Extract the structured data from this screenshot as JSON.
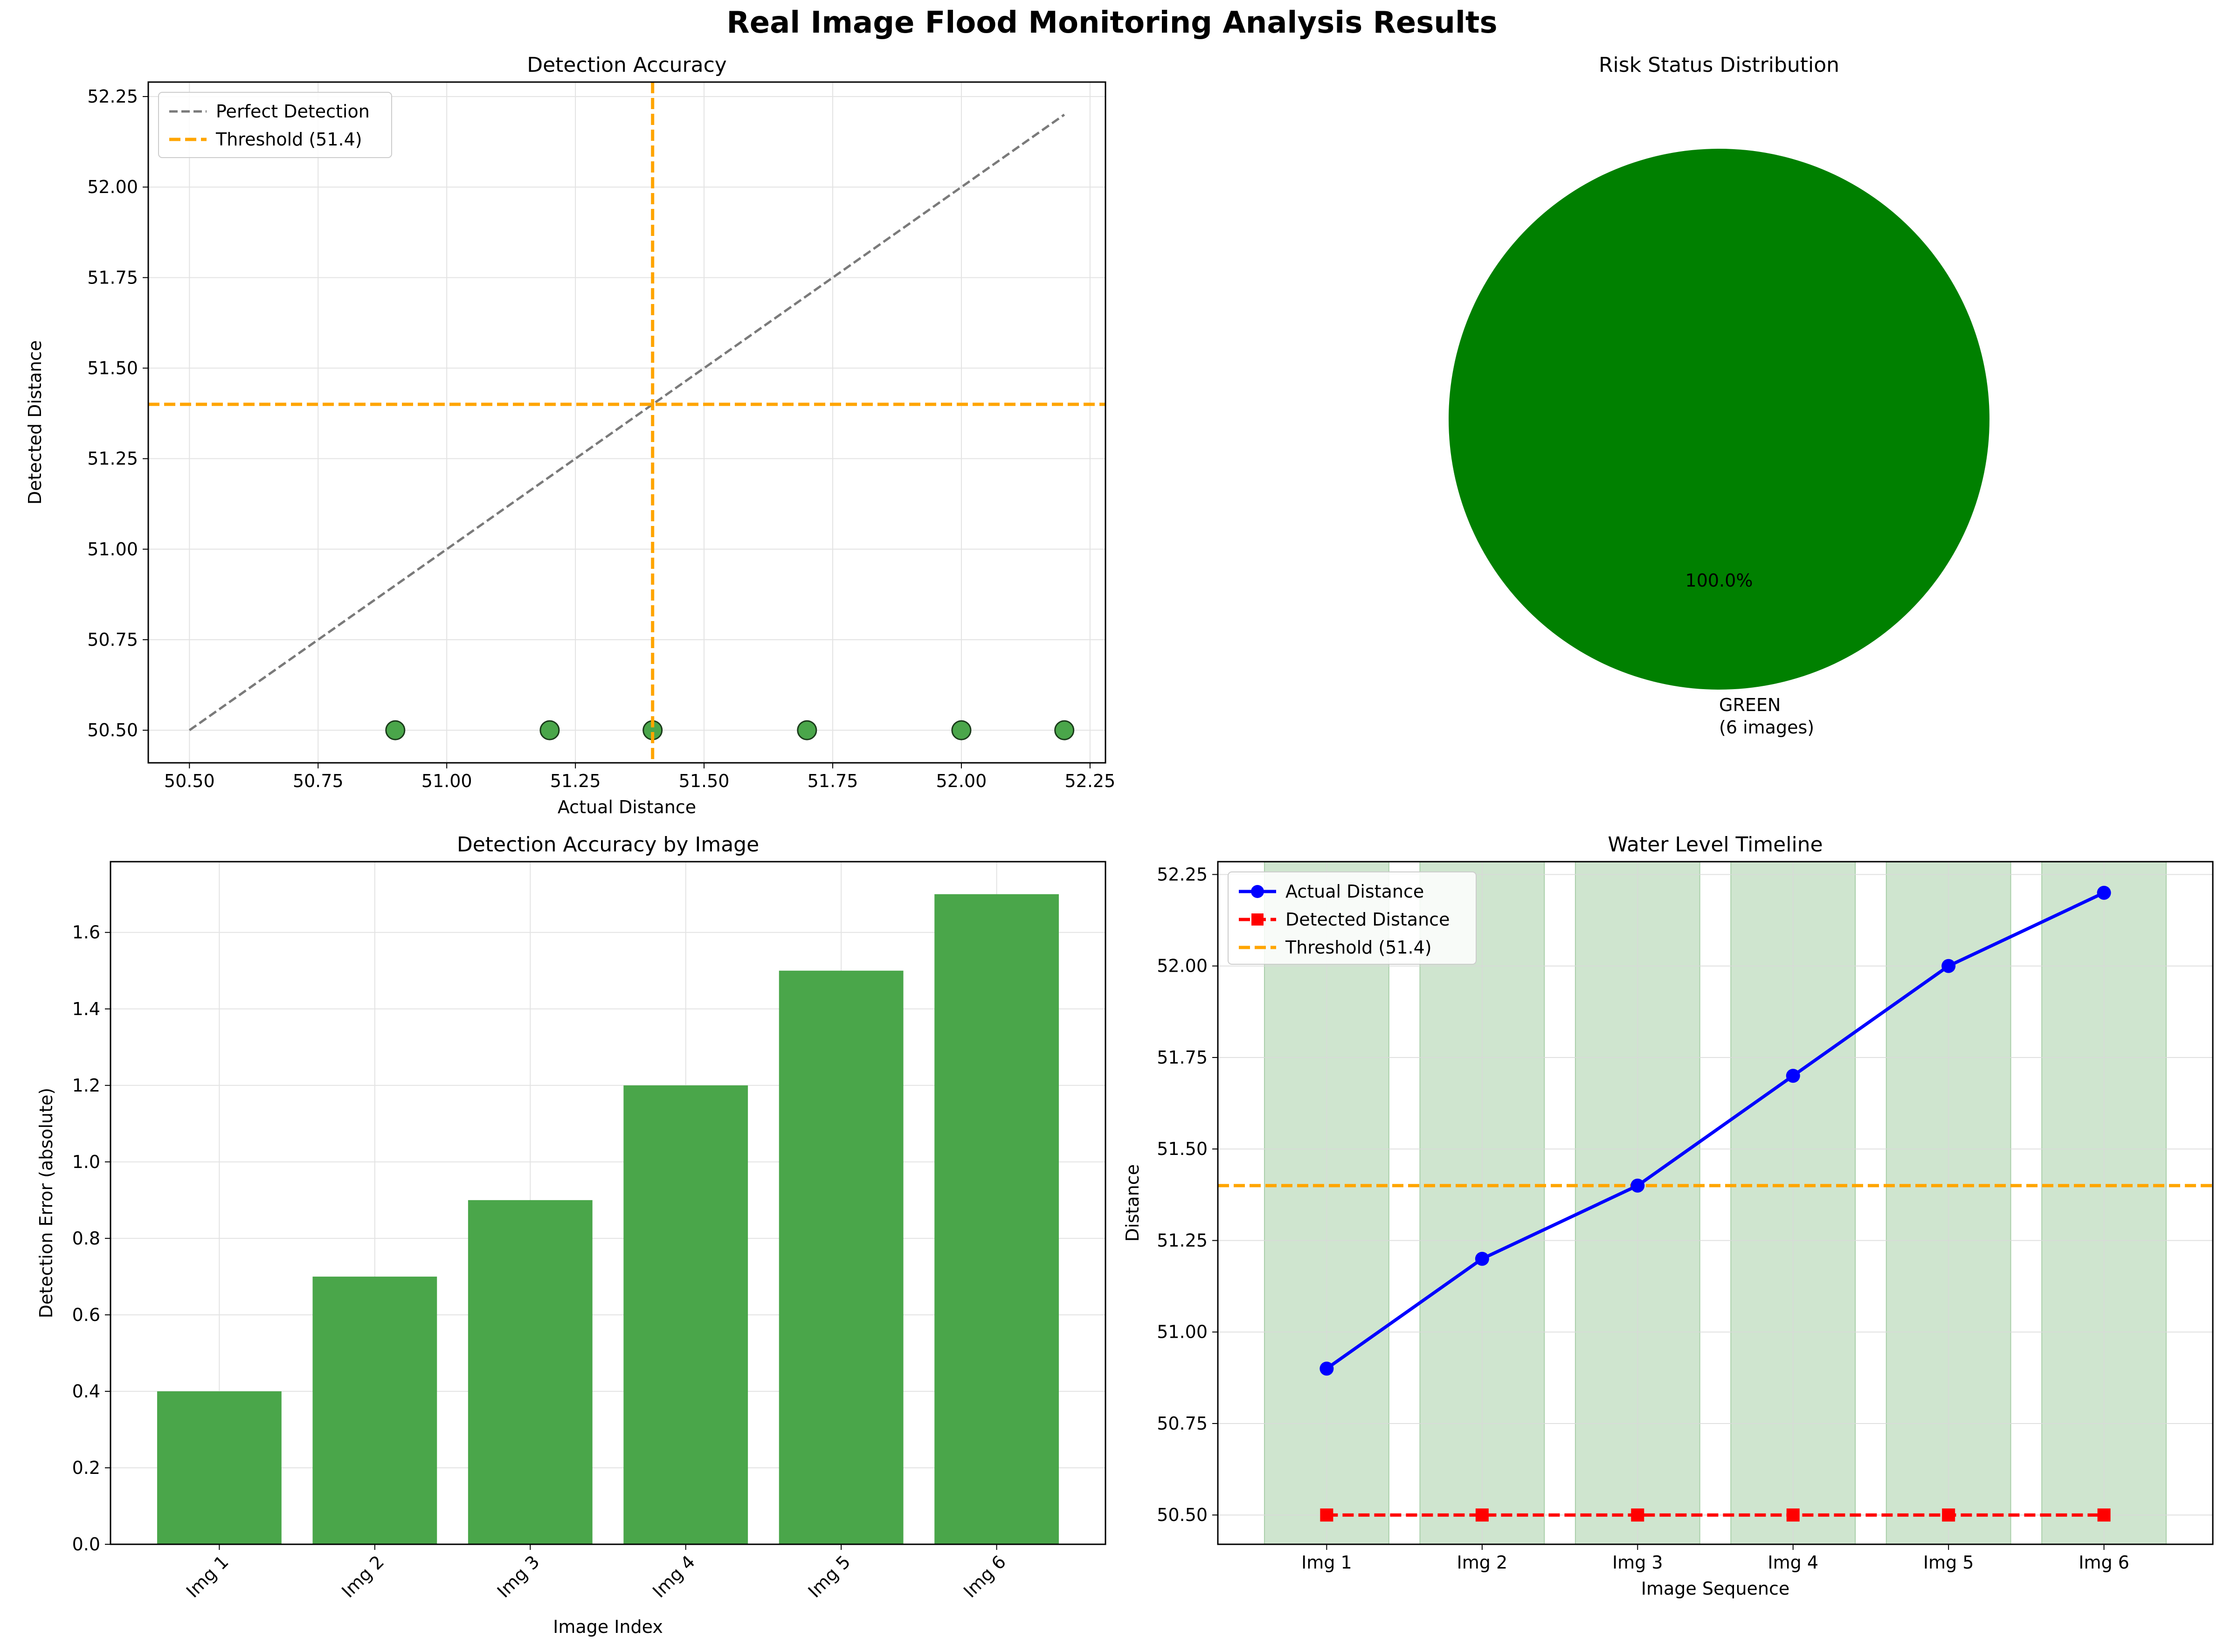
{
  "figure_title": "Real Image Flood Monitoring Analysis Results",
  "chart_data": [
    {
      "type": "scatter",
      "title": "Detection Accuracy",
      "xlabel": "Actual Distance",
      "ylabel": "Detected Distance",
      "xlim": [
        50.42,
        52.28
      ],
      "ylim": [
        50.41,
        52.29
      ],
      "xticks": [
        "50.50",
        "50.75",
        "51.00",
        "51.25",
        "51.50",
        "51.75",
        "52.00",
        "52.25"
      ],
      "yticks": [
        "50.50",
        "50.75",
        "51.00",
        "51.25",
        "51.50",
        "51.75",
        "52.00",
        "52.25"
      ],
      "grid": true,
      "legend": {
        "position": "top-left",
        "entries": [
          "Perfect Detection",
          "Threshold (51.4)"
        ]
      },
      "points": {
        "x": [
          50.9,
          51.2,
          51.4,
          51.7,
          52.0,
          52.2
        ],
        "y": [
          50.5,
          50.5,
          50.5,
          50.5,
          50.5,
          50.5
        ],
        "color": "#4aa64a"
      },
      "perfect_line": {
        "x": [
          50.5,
          52.2
        ],
        "y": [
          50.5,
          52.2
        ],
        "color": "#7a7a7a"
      },
      "threshold": {
        "value": 51.4,
        "color": "#ffa500"
      }
    },
    {
      "type": "pie",
      "title": "Risk Status Distribution",
      "slices": [
        {
          "label": "GREEN\n(6 images)",
          "value": 6,
          "pct_label": "100.0%",
          "color": "#008000"
        }
      ]
    },
    {
      "type": "bar",
      "title": "Detection Accuracy by Image",
      "xlabel": "Image Index",
      "ylabel": "Detection Error (absolute)",
      "categories": [
        "Img 1",
        "Img 2",
        "Img 3",
        "Img 4",
        "Img 5",
        "Img 6"
      ],
      "values": [
        0.4,
        0.7,
        0.9,
        1.2,
        1.5,
        1.7
      ],
      "ylim": [
        0,
        1.785
      ],
      "yticks": [
        "0.0",
        "0.2",
        "0.4",
        "0.6",
        "0.8",
        "1.0",
        "1.2",
        "1.4",
        "1.6"
      ],
      "grid": true,
      "color": "#4aa64a"
    },
    {
      "type": "line",
      "title": "Water Level Timeline",
      "xlabel": "Image Sequence",
      "ylabel": "Distance",
      "categories": [
        "Img 1",
        "Img 2",
        "Img 3",
        "Img 4",
        "Img 5",
        "Img 6"
      ],
      "ylim": [
        50.42,
        52.285
      ],
      "yticks": [
        "50.50",
        "50.75",
        "51.00",
        "51.25",
        "51.50",
        "51.75",
        "52.00",
        "52.25"
      ],
      "grid": true,
      "legend": {
        "position": "top-left",
        "entries": [
          "Actual Distance",
          "Detected Distance",
          "Threshold (51.4)"
        ]
      },
      "series": [
        {
          "name": "Actual Distance",
          "values": [
            50.9,
            51.2,
            51.4,
            51.7,
            52.0,
            52.2
          ],
          "color": "#0000ff",
          "marker": "circle"
        },
        {
          "name": "Detected Distance",
          "values": [
            50.5,
            50.5,
            50.5,
            50.5,
            50.5,
            50.5
          ],
          "color": "#ff0000",
          "marker": "square"
        }
      ],
      "threshold": {
        "value": 51.4,
        "color": "#ffa500"
      },
      "status_band_color": "#cfe5cf"
    }
  ]
}
